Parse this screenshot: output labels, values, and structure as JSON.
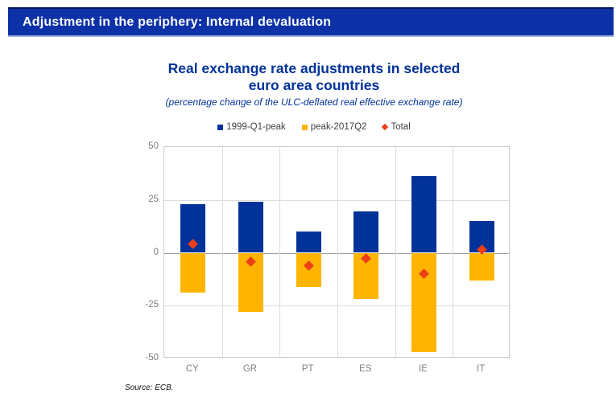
{
  "header": {
    "title": "Adjustment in the periphery: Internal devaluation"
  },
  "chart": {
    "title_line1": "Real exchange rate adjustments in selected",
    "title_line2": "euro area countries",
    "subtitle": "(percentage change of the ULC-deflated real effective exchange rate)"
  },
  "source": "Source: ECB.",
  "colors": {
    "header_bar": "#0D31A6",
    "title_blue": "#003299",
    "series_blue": "#003299",
    "series_yellow": "#FFB400",
    "total_red": "#ED3E17",
    "gridline": "#DCDCDC",
    "zero_line": "#9E9E9E",
    "axis_text": "#7F7F7F"
  },
  "chart_data": {
    "type": "bar",
    "title": "Real exchange rate adjustments in selected euro area countries",
    "subtitle": "(percentage change of the ULC-deflated real effective exchange rate)",
    "categories": [
      "CY",
      "GR",
      "PT",
      "ES",
      "IE",
      "IT"
    ],
    "series": [
      {
        "name": "1999-Q1-peak",
        "color": "#003299",
        "values": [
          23,
          24,
          10,
          19.5,
          36.5,
          15
        ]
      },
      {
        "name": "peak-2017Q2",
        "color": "#FFB400",
        "values": [
          -19,
          -28,
          -16,
          -22,
          -47,
          -13
        ]
      }
    ],
    "total": {
      "name": "Total",
      "color": "#ED3E17",
      "marker": "diamond",
      "values": [
        4,
        -4,
        -6,
        -2.5,
        -10,
        1.5
      ]
    },
    "ylim": [
      -50,
      50
    ],
    "yticks": [
      50,
      25,
      0,
      -25,
      -50
    ],
    "grid": true,
    "legend_position": "top",
    "xlabel": "",
    "ylabel": ""
  }
}
